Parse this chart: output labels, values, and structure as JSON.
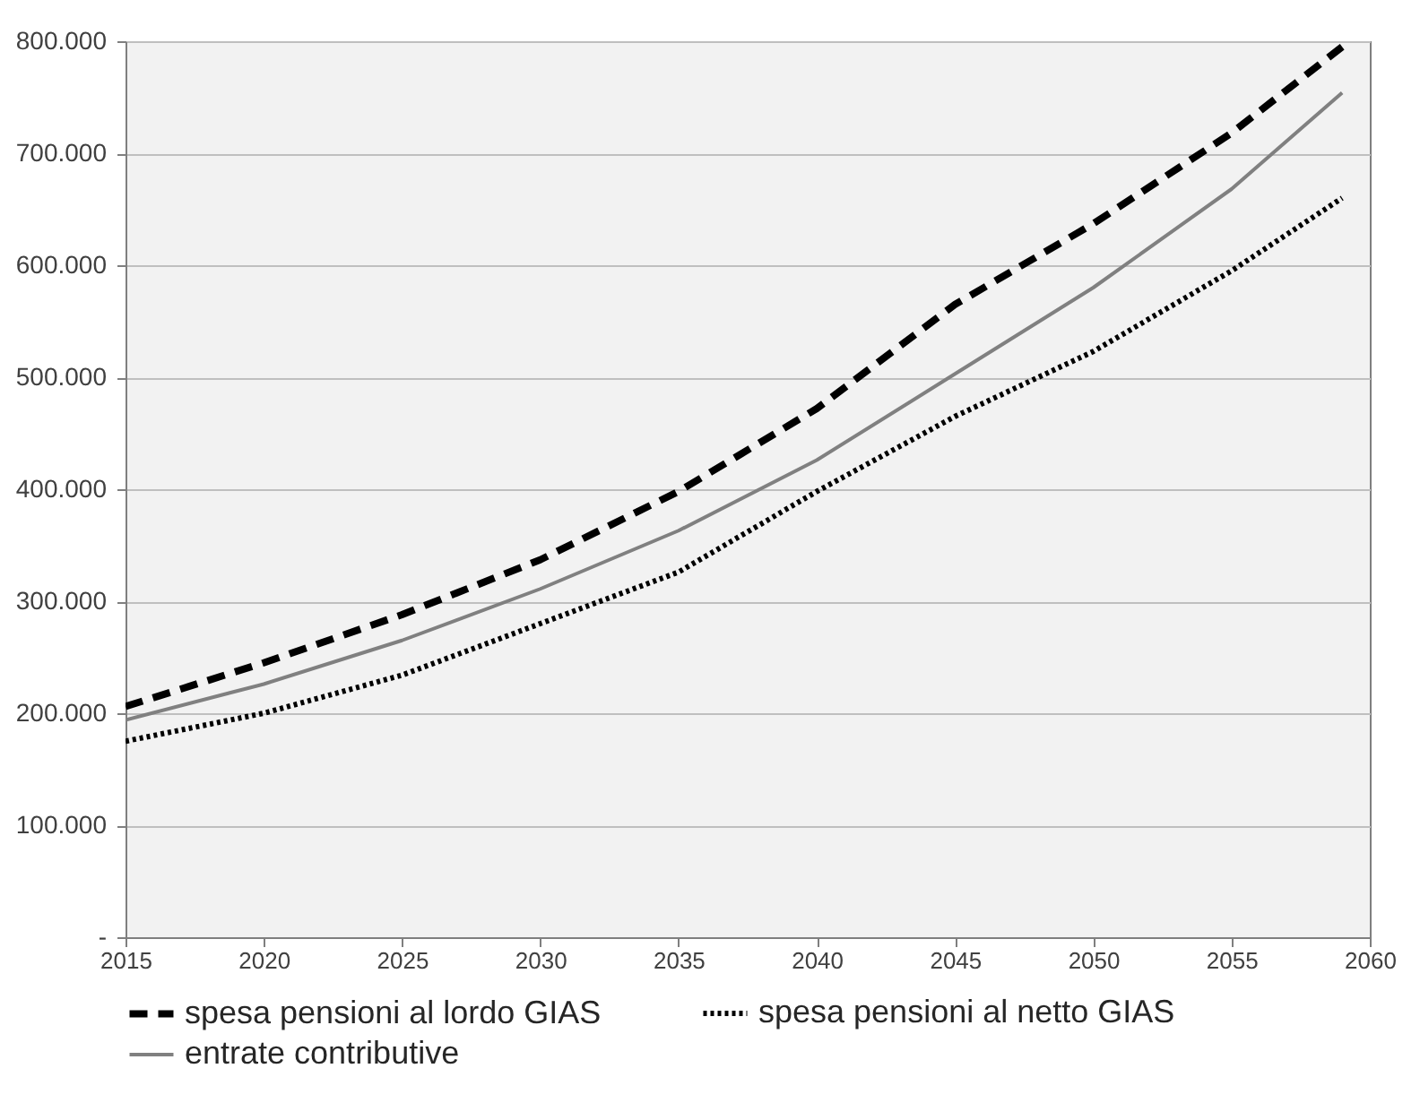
{
  "chart_data": {
    "type": "line",
    "x": [
      2015,
      2020,
      2025,
      2030,
      2035,
      2040,
      2045,
      2050,
      2055,
      2059
    ],
    "series": [
      {
        "name": "spesa pensioni al lordo GIAS",
        "color": "#000000",
        "line_style": "dashed",
        "values": [
          206000,
          245000,
          288000,
          337000,
          398000,
          472000,
          565000,
          637000,
          718000,
          795000
        ]
      },
      {
        "name": "spesa pensioni al netto GIAS",
        "color": "#000000",
        "line_style": "dotted",
        "values": [
          175000,
          200000,
          234000,
          280000,
          326000,
          398000,
          465000,
          523000,
          595000,
          660000
        ]
      },
      {
        "name": "entrate contributive",
        "color": "#808080",
        "line_style": "solid",
        "values": [
          194000,
          226000,
          265000,
          311000,
          363000,
          426000,
          503000,
          580000,
          668000,
          754000
        ]
      }
    ],
    "xlim": [
      2015,
      2060
    ],
    "xticks": [
      2015,
      2020,
      2025,
      2030,
      2035,
      2040,
      2045,
      2050,
      2055,
      2060
    ],
    "ylim": [
      0,
      800000
    ],
    "yticks": [
      {
        "value": 0,
        "label": "-"
      },
      {
        "value": 100000,
        "label": "100.000"
      },
      {
        "value": 200000,
        "label": "200.000"
      },
      {
        "value": 300000,
        "label": "300.000"
      },
      {
        "value": 400000,
        "label": "400.000"
      },
      {
        "value": 500000,
        "label": "500.000"
      },
      {
        "value": 600000,
        "label": "600.000"
      },
      {
        "value": 700000,
        "label": "700.000"
      },
      {
        "value": 800000,
        "label": "800.000"
      }
    ],
    "grid": "y",
    "legend": "bottom",
    "marker": "none"
  }
}
